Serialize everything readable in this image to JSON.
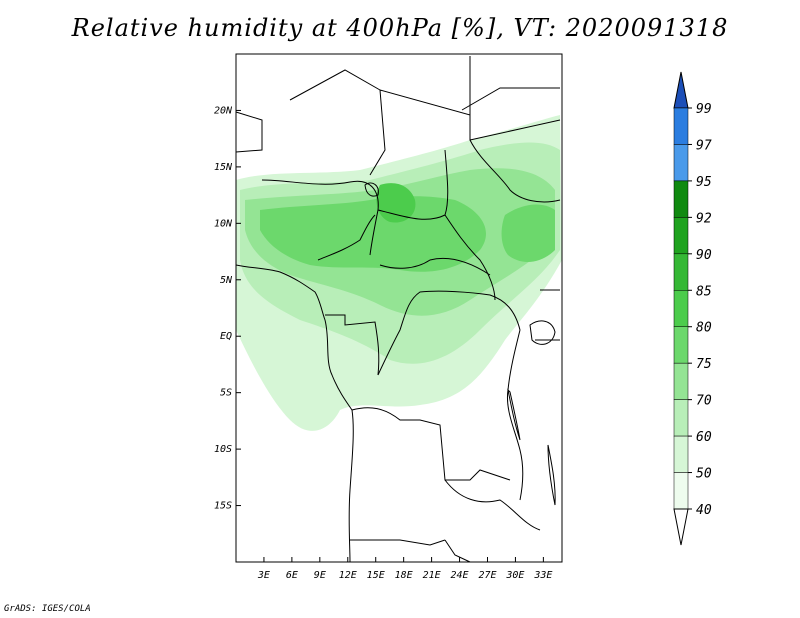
{
  "title": "Relative humidity at 400hPa [%], VT: 2020091318",
  "credit": "GrADS: IGES/COLA",
  "map": {
    "lon_range": [
      0,
      35
    ],
    "lat_range": [
      -20,
      25
    ],
    "lat_ticks": [
      {
        "label": "20N",
        "lat": 20
      },
      {
        "label": "15N",
        "lat": 15
      },
      {
        "label": "10N",
        "lat": 10
      },
      {
        "label": "5N",
        "lat": 5
      },
      {
        "label": "EQ",
        "lat": 0
      },
      {
        "label": "5S",
        "lat": -5
      },
      {
        "label": "10S",
        "lat": -10
      },
      {
        "label": "15S",
        "lat": -15
      }
    ],
    "lon_ticks": [
      {
        "label": "3E",
        "lon": 3
      },
      {
        "label": "6E",
        "lon": 6
      },
      {
        "label": "9E",
        "lon": 9
      },
      {
        "label": "12E",
        "lon": 12
      },
      {
        "label": "15E",
        "lon": 15
      },
      {
        "label": "18E",
        "lon": 18
      },
      {
        "label": "21E",
        "lon": 21
      },
      {
        "label": "24E",
        "lon": 24
      },
      {
        "label": "27E",
        "lon": 27
      },
      {
        "label": "30E",
        "lon": 30
      },
      {
        "label": "33E",
        "lon": 33
      }
    ]
  },
  "colorbar": {
    "labels": [
      "99",
      "97",
      "95",
      "92",
      "90",
      "85",
      "80",
      "75",
      "70",
      "60",
      "50",
      "40"
    ],
    "colors": [
      "#1c5fd0",
      "#2b7de0",
      "#4a9aea",
      "#108a10",
      "#1fa31f",
      "#35b835",
      "#4ccc4c",
      "#6cd86c",
      "#94e494",
      "#b8eeb8",
      "#d6f6d6",
      "#eefcee",
      "#ffffff"
    ],
    "top_color": "#1c4fb8",
    "bottom_color": "#ffffff"
  }
}
